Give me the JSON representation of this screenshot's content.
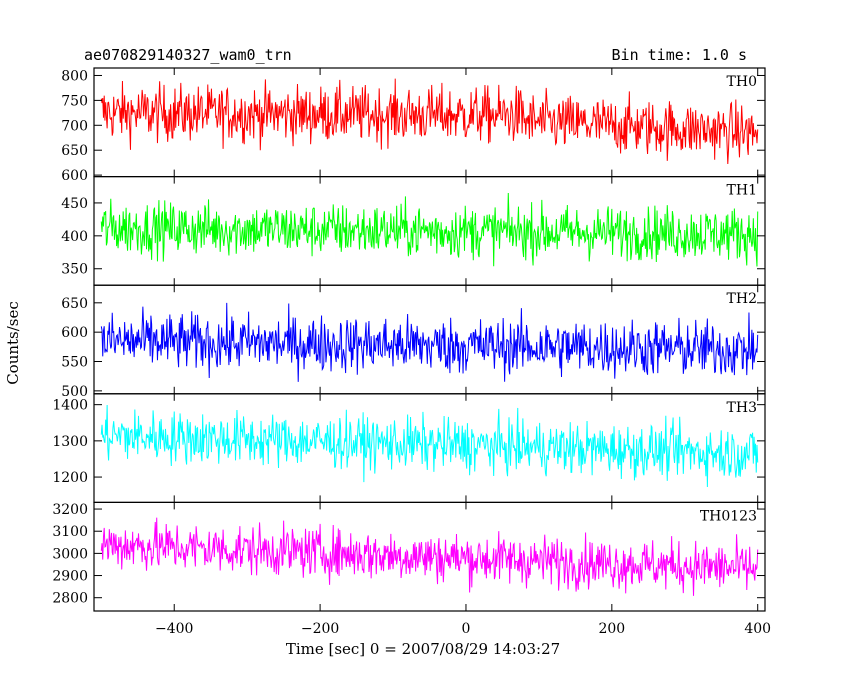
{
  "header": {
    "title": "ae070829140327_wam0_trn",
    "bin_time": "Bin time: 1.0 s"
  },
  "chart_data": {
    "type": "line",
    "xlabel": "Time [sec] 0 = 2007/08/29 14:03:27",
    "ylabel": "Counts/sec",
    "xlim": [
      -510,
      410
    ],
    "x_ticks": [
      -400,
      -200,
      0,
      200,
      400
    ],
    "x_tick_labels": [
      "−400",
      "−200",
      "0",
      "200",
      "400"
    ],
    "x_start": -500,
    "x_end": 400,
    "bin_time": 1.0,
    "grid": false,
    "panels": [
      {
        "label": "TH0",
        "color": "#ff0000",
        "ylim": [
          597,
          815
        ],
        "y_ticks": [
          600,
          650,
          700,
          750,
          800
        ],
        "mean_start": 725,
        "mean_end": 685,
        "mean_step_at": 80,
        "mean_after_step": 708,
        "noise": 28
      },
      {
        "label": "TH1",
        "color": "#00ff00",
        "ylim": [
          325,
          490
        ],
        "y_ticks": [
          350,
          400,
          450
        ],
        "mean_start": 412,
        "mean_end": 403,
        "noise": 20
      },
      {
        "label": "TH2",
        "color": "#0000ff",
        "ylim": [
          495,
          680
        ],
        "y_ticks": [
          500,
          550,
          600,
          650
        ],
        "mean_start": 585,
        "mean_end": 570,
        "noise": 24
      },
      {
        "label": "TH3",
        "color": "#00ffff",
        "ylim": [
          1130,
          1430
        ],
        "y_ticks": [
          1200,
          1300,
          1400
        ],
        "mean_start": 1315,
        "mean_end": 1265,
        "noise": 36
      },
      {
        "label": "TH0123",
        "color": "#ff00ff",
        "ylim": [
          2740,
          3230
        ],
        "y_ticks": [
          2800,
          2900,
          3000,
          3100,
          3200
        ],
        "mean_start": 3040,
        "mean_end": 2930,
        "noise": 56
      }
    ]
  }
}
